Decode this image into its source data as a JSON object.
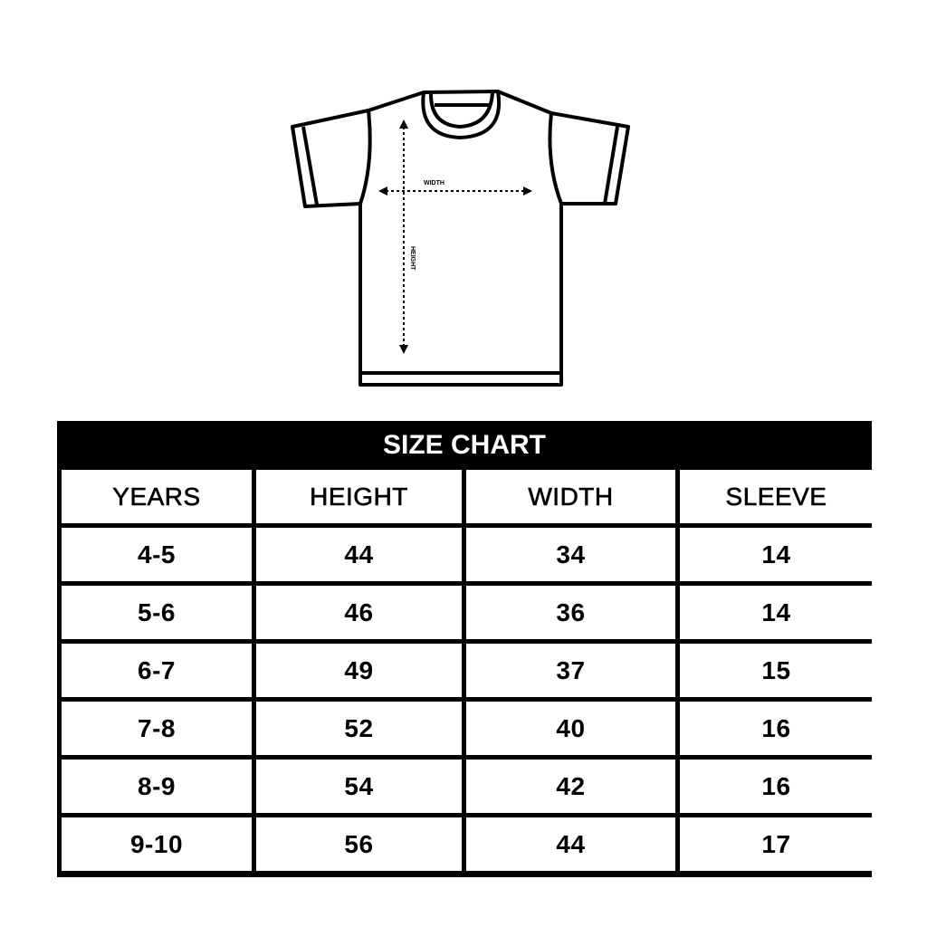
{
  "diagram": {
    "width_label": "WIDTH",
    "height_label": "HEIGHT"
  },
  "table": {
    "title": "SIZE CHART",
    "headers": [
      "YEARS",
      "HEIGHT",
      "WIDTH",
      "SLEEVE"
    ],
    "rows": [
      [
        "4-5",
        "44",
        "34",
        "14"
      ],
      [
        "5-6",
        "46",
        "36",
        "14"
      ],
      [
        "6-7",
        "49",
        "37",
        "15"
      ],
      [
        "7-8",
        "52",
        "40",
        "16"
      ],
      [
        "8-9",
        "54",
        "42",
        "16"
      ],
      [
        "9-10",
        "56",
        "44",
        "17"
      ]
    ]
  }
}
